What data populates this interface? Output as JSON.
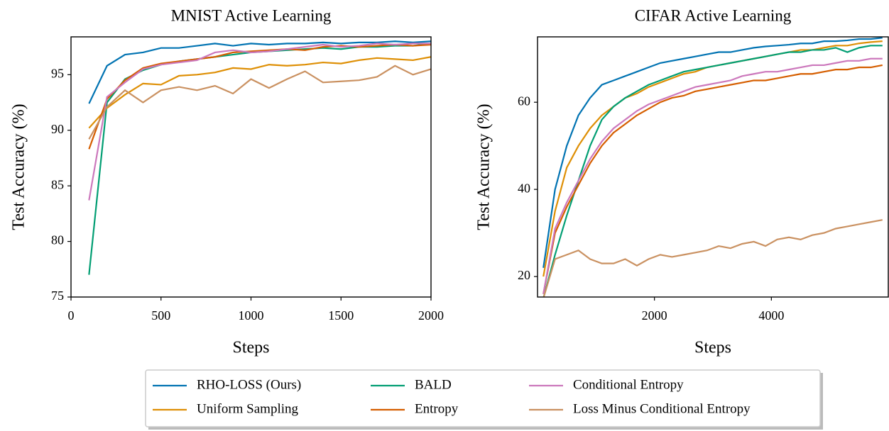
{
  "chart_data": [
    {
      "type": "line",
      "title": "MNIST Active Learning",
      "x_label": "Steps",
      "y_label": "Test Accuracy (%)",
      "x": [
        100,
        200,
        300,
        400,
        500,
        600,
        700,
        800,
        900,
        1000,
        1100,
        1200,
        1300,
        1400,
        1500,
        1600,
        1700,
        1800,
        1900,
        2000
      ],
      "xlim": [
        0,
        2000
      ],
      "xticks": [
        0,
        500,
        1000,
        1500,
        2000
      ],
      "ylim": [
        75,
        98.4
      ],
      "yticks": [
        75,
        80,
        85,
        90,
        95
      ],
      "series": [
        {
          "name": "RHO-LOSS (Ours)",
          "color": "#0173b2",
          "values": [
            92.4,
            95.8,
            96.8,
            97.0,
            97.4,
            97.4,
            97.6,
            97.8,
            97.6,
            97.8,
            97.7,
            97.8,
            97.8,
            97.9,
            97.8,
            97.9,
            97.9,
            98.0,
            97.9,
            98.0
          ]
        },
        {
          "name": "Uniform Sampling",
          "color": "#de8f05",
          "values": [
            90.2,
            92.0,
            93.2,
            94.2,
            94.1,
            94.9,
            95.0,
            95.2,
            95.6,
            95.5,
            95.9,
            95.8,
            95.9,
            96.1,
            96.0,
            96.3,
            96.5,
            96.4,
            96.3,
            96.6
          ]
        },
        {
          "name": "BALD",
          "color": "#029e73",
          "values": [
            77.0,
            92.5,
            94.6,
            95.4,
            95.9,
            96.2,
            96.4,
            96.6,
            96.8,
            97.0,
            97.1,
            97.2,
            97.3,
            97.4,
            97.3,
            97.5,
            97.5,
            97.6,
            97.6,
            97.8
          ]
        },
        {
          "name": "Entropy",
          "color": "#d55e00",
          "values": [
            88.3,
            92.8,
            94.5,
            95.6,
            96.0,
            96.2,
            96.4,
            96.6,
            97.0,
            97.1,
            97.2,
            97.3,
            97.2,
            97.5,
            97.6,
            97.5,
            97.6,
            97.7,
            97.6,
            97.7
          ]
        },
        {
          "name": "Conditional Entropy",
          "color": "#cc78bc",
          "values": [
            83.7,
            93.0,
            94.3,
            95.5,
            95.9,
            96.1,
            96.3,
            97.0,
            97.2,
            97.0,
            97.1,
            97.3,
            97.5,
            97.7,
            97.5,
            97.6,
            97.8,
            97.7,
            97.8,
            97.8
          ]
        },
        {
          "name": "Loss Minus Conditional Entropy",
          "color": "#ca9161",
          "values": [
            89.2,
            92.1,
            93.6,
            92.5,
            93.6,
            93.9,
            93.6,
            94.0,
            93.3,
            94.6,
            93.8,
            94.6,
            95.3,
            94.3,
            94.4,
            94.5,
            94.8,
            95.8,
            95.0,
            95.5
          ]
        }
      ]
    },
    {
      "type": "line",
      "title": "CIFAR Active Learning",
      "x_label": "Steps",
      "y_label": "Test Accuracy (%)",
      "x": [
        100,
        300,
        500,
        700,
        900,
        1100,
        1300,
        1500,
        1700,
        1900,
        2100,
        2300,
        2500,
        2700,
        2900,
        3100,
        3300,
        3500,
        3700,
        3900,
        4100,
        4300,
        4500,
        4700,
        4900,
        5100,
        5300,
        5500,
        5700,
        5900
      ],
      "xlim": [
        0,
        6000
      ],
      "xticks": [
        2000,
        4000
      ],
      "ylim": [
        15.3,
        75
      ],
      "yticks": [
        20,
        40,
        60
      ],
      "series": [
        {
          "name": "RHO-LOSS (Ours)",
          "color": "#0173b2",
          "values": [
            22,
            40,
            50,
            57,
            61,
            64,
            65,
            66,
            67,
            68,
            69,
            69.5,
            70,
            70.5,
            71,
            71.5,
            71.5,
            72,
            72.5,
            72.8,
            73,
            73.2,
            73.5,
            73.5,
            74,
            74,
            74.2,
            74.5,
            74.5,
            74.8
          ]
        },
        {
          "name": "Uniform Sampling",
          "color": "#de8f05",
          "values": [
            20,
            35,
            45,
            50,
            54,
            57,
            59,
            61,
            62,
            63.5,
            64.5,
            65.5,
            66.5,
            67,
            68,
            68.5,
            69,
            69.5,
            70,
            70.5,
            71,
            71.5,
            72,
            72,
            72.5,
            73,
            73,
            73.5,
            73.8,
            74
          ]
        },
        {
          "name": "BALD",
          "color": "#029e73",
          "values": [
            15,
            25,
            34,
            42,
            50,
            56,
            59,
            61,
            62.5,
            64,
            65,
            66,
            67,
            67.5,
            68,
            68.5,
            69,
            69.5,
            70,
            70.5,
            71,
            71.5,
            71.5,
            72,
            72,
            72.5,
            71.5,
            72.5,
            73,
            73
          ]
        },
        {
          "name": "Entropy",
          "color": "#d55e00",
          "values": [
            16,
            30,
            36,
            41,
            46,
            50,
            53,
            55,
            57,
            58.5,
            60,
            61,
            61.5,
            62.5,
            63,
            63.5,
            64,
            64.5,
            65,
            65,
            65.5,
            66,
            66.5,
            66.5,
            67,
            67.5,
            67.5,
            68,
            68,
            68.5
          ]
        },
        {
          "name": "Conditional Entropy",
          "color": "#cc78bc",
          "values": [
            16,
            31,
            37,
            42,
            47,
            51,
            54,
            56,
            58,
            59.5,
            60.5,
            61.5,
            62.5,
            63.5,
            64,
            64.5,
            65,
            66,
            66.5,
            67,
            67,
            67.5,
            68,
            68.5,
            68.5,
            69,
            69.5,
            69.5,
            70,
            70
          ]
        },
        {
          "name": "Loss Minus Conditional Entropy",
          "color": "#ca9161",
          "values": [
            15,
            24,
            25,
            26,
            24,
            23,
            23,
            24,
            22.5,
            24,
            25,
            24.5,
            25,
            25.5,
            26,
            27,
            26.5,
            27.5,
            28,
            27,
            28.5,
            29,
            28.5,
            29.5,
            30,
            31,
            31.5,
            32,
            32.5,
            33
          ]
        }
      ]
    }
  ]
}
